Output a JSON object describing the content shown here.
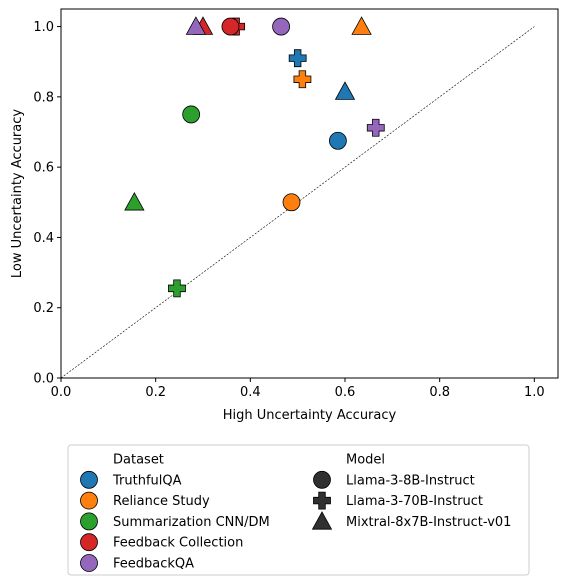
{
  "chart_data": {
    "type": "scatter",
    "xlabel": "High Uncertainty Accuracy",
    "ylabel": "Low Uncertainty Accuracy",
    "xlim": [
      0.0,
      1.05
    ],
    "ylim": [
      0.0,
      1.05
    ],
    "xticks": [
      {
        "value": 0.0,
        "label": "0.0"
      },
      {
        "value": 0.2,
        "label": "0.2"
      },
      {
        "value": 0.4,
        "label": "0.4"
      },
      {
        "value": 0.6,
        "label": "0.6"
      },
      {
        "value": 0.8,
        "label": "0.8"
      },
      {
        "value": 1.0,
        "label": "1.0"
      }
    ],
    "yticks": [
      {
        "value": 0.0,
        "label": "0.0"
      },
      {
        "value": 0.2,
        "label": "0.2"
      },
      {
        "value": 0.4,
        "label": "0.4"
      },
      {
        "value": 0.6,
        "label": "0.6"
      },
      {
        "value": 0.8,
        "label": "0.8"
      },
      {
        "value": 1.0,
        "label": "1.0"
      }
    ],
    "diagonal": {
      "from": [
        0.0,
        0.0
      ],
      "to": [
        1.0,
        1.0
      ],
      "style": "dashed",
      "color": "#000000"
    },
    "grid": false,
    "legend_placement": "below",
    "datasets": [
      {
        "name": "TruthfulQA",
        "color": "#1f77b4"
      },
      {
        "name": "Reliance Study",
        "color": "#ff7f0e"
      },
      {
        "name": "Summarization CNN/DM",
        "color": "#2ca02c"
      },
      {
        "name": "Feedback Collection",
        "color": "#d62728"
      },
      {
        "name": "FeedbackQA",
        "color": "#9467bd"
      }
    ],
    "models": [
      {
        "name": "Llama-3-8B-Instruct",
        "marker": "circle"
      },
      {
        "name": "Llama-3-70B-Instruct",
        "marker": "plus"
      },
      {
        "name": "Mixtral-8x7B-Instruct-v01",
        "marker": "triangle"
      }
    ],
    "legend_titles": {
      "dataset": "Dataset",
      "model": "Model"
    },
    "legend_marker_color": "#303030",
    "points": [
      {
        "dataset": "TruthfulQA",
        "model": "Llama-3-8B-Instruct",
        "x": 0.585,
        "y": 0.675
      },
      {
        "dataset": "TruthfulQA",
        "model": "Llama-3-70B-Instruct",
        "x": 0.5,
        "y": 0.91
      },
      {
        "dataset": "TruthfulQA",
        "model": "Mixtral-8x7B-Instruct-v01",
        "x": 0.6,
        "y": 0.815
      },
      {
        "dataset": "Reliance Study",
        "model": "Llama-3-8B-Instruct",
        "x": 0.487,
        "y": 0.5
      },
      {
        "dataset": "Reliance Study",
        "model": "Llama-3-70B-Instruct",
        "x": 0.51,
        "y": 0.85
      },
      {
        "dataset": "Reliance Study",
        "model": "Mixtral-8x7B-Instruct-v01",
        "x": 0.635,
        "y": 1.0
      },
      {
        "dataset": "Summarization CNN/DM",
        "model": "Llama-3-8B-Instruct",
        "x": 0.275,
        "y": 0.75
      },
      {
        "dataset": "Summarization CNN/DM",
        "model": "Llama-3-70B-Instruct",
        "x": 0.245,
        "y": 0.255
      },
      {
        "dataset": "Summarization CNN/DM",
        "model": "Mixtral-8x7B-Instruct-v01",
        "x": 0.155,
        "y": 0.5
      },
      {
        "dataset": "Feedback Collection",
        "model": "Mixtral-8x7B-Instruct-v01",
        "x": 0.3,
        "y": 1.0
      },
      {
        "dataset": "Feedback Collection",
        "model": "Llama-3-70B-Instruct",
        "x": 0.37,
        "y": 1.0
      },
      {
        "dataset": "Feedback Collection",
        "model": "Llama-3-8B-Instruct",
        "x": 0.358,
        "y": 1.0
      },
      {
        "dataset": "FeedbackQA",
        "model": "Mixtral-8x7B-Instruct-v01",
        "x": 0.285,
        "y": 1.0
      },
      {
        "dataset": "FeedbackQA",
        "model": "Llama-3-8B-Instruct",
        "x": 0.465,
        "y": 1.0
      },
      {
        "dataset": "FeedbackQA",
        "model": "Llama-3-70B-Instruct",
        "x": 0.665,
        "y": 0.712
      }
    ]
  }
}
